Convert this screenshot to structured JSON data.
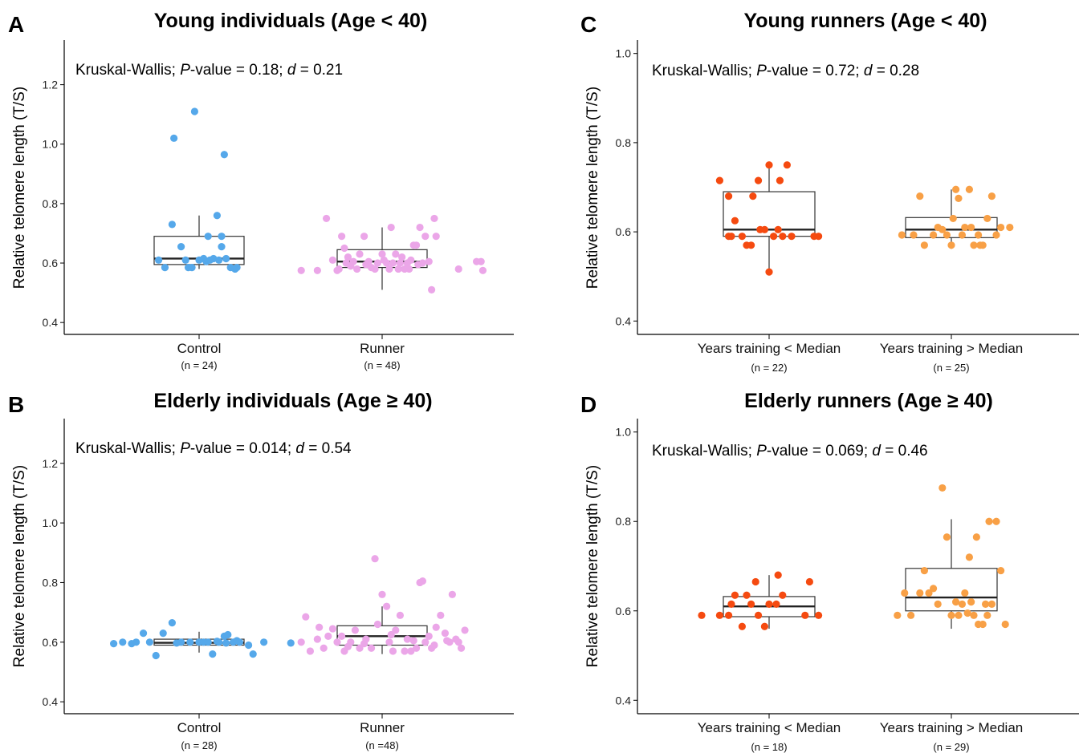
{
  "chart_data": [
    {
      "type": "box",
      "panel": "A",
      "title": "Young individuals (Age < 40)",
      "stat_parts": [
        "Kruskal-Wallis; ",
        "P",
        "-value = 0.18; ",
        "d",
        " = 0.21"
      ],
      "ylabel": "Relative telomere length (T/S)",
      "ylim": [
        0.36,
        1.35
      ],
      "yticks": [
        "0.4",
        "0.6",
        "0.8",
        "1.0",
        "1.2"
      ],
      "categories": [
        "Control",
        "Runner"
      ],
      "n_labels": [
        "(n = 24)",
        "(n = 48)"
      ],
      "colors": [
        "#55a8ea",
        "#eba6e8"
      ],
      "boxes": [
        {
          "q1": 0.595,
          "median": 0.615,
          "q3": 0.69,
          "whisker_low": 0.58,
          "whisker_high": 0.76
        },
        {
          "q1": 0.585,
          "median": 0.605,
          "q3": 0.645,
          "whisker_low": 0.51,
          "whisker_high": 0.72
        }
      ],
      "points": [
        [
          [
            -0.45,
            0.61
          ],
          [
            -0.38,
            0.585
          ],
          [
            -0.3,
            0.73
          ],
          [
            -0.2,
            0.655
          ],
          [
            -0.28,
            1.02
          ],
          [
            -0.05,
            1.11
          ],
          [
            0.1,
            0.69
          ],
          [
            0.2,
            0.76
          ],
          [
            0.25,
            0.69
          ],
          [
            0.28,
            0.965
          ],
          [
            0.25,
            0.655
          ],
          [
            -0.15,
            0.61
          ],
          [
            -0.12,
            0.585
          ],
          [
            -0.08,
            0.585
          ],
          [
            0.0,
            0.61
          ],
          [
            0.05,
            0.615
          ],
          [
            0.08,
            0.605
          ],
          [
            0.12,
            0.61
          ],
          [
            0.16,
            0.615
          ],
          [
            0.22,
            0.61
          ],
          [
            0.3,
            0.615
          ],
          [
            0.35,
            0.585
          ],
          [
            0.4,
            0.58
          ],
          [
            0.42,
            0.585
          ]
        ],
        [
          [
            -0.9,
            0.575
          ],
          [
            -0.72,
            0.575
          ],
          [
            -0.62,
            0.75
          ],
          [
            -0.5,
            0.575
          ],
          [
            -0.45,
            0.69
          ],
          [
            -0.42,
            0.65
          ],
          [
            -0.38,
            0.62
          ],
          [
            -0.32,
            0.605
          ],
          [
            -0.28,
            0.58
          ],
          [
            -0.25,
            0.63
          ],
          [
            -0.2,
            0.69
          ],
          [
            -0.15,
            0.605
          ],
          [
            -0.12,
            0.585
          ],
          [
            -0.08,
            0.58
          ],
          [
            -0.05,
            0.6
          ],
          [
            0.0,
            0.63
          ],
          [
            0.02,
            0.61
          ],
          [
            0.05,
            0.6
          ],
          [
            0.08,
            0.58
          ],
          [
            0.1,
            0.72
          ],
          [
            0.12,
            0.6
          ],
          [
            0.15,
            0.63
          ],
          [
            0.18,
            0.58
          ],
          [
            0.2,
            0.6
          ],
          [
            0.22,
            0.62
          ],
          [
            0.25,
            0.58
          ],
          [
            0.28,
            0.6
          ],
          [
            0.3,
            0.58
          ],
          [
            0.35,
            0.66
          ],
          [
            0.38,
            0.66
          ],
          [
            0.42,
            0.72
          ],
          [
            0.48,
            0.69
          ],
          [
            0.52,
            0.605
          ],
          [
            0.55,
            0.51
          ],
          [
            0.58,
            0.75
          ],
          [
            0.6,
            0.69
          ],
          [
            -0.55,
            0.61
          ],
          [
            -0.48,
            0.58
          ],
          [
            -0.4,
            0.6
          ],
          [
            -0.35,
            0.59
          ],
          [
            -0.18,
            0.595
          ],
          [
            0.32,
            0.61
          ],
          [
            0.4,
            0.595
          ],
          [
            0.45,
            0.6
          ],
          [
            0.85,
            0.58
          ],
          [
            1.05,
            0.605
          ],
          [
            1.12,
            0.575
          ],
          [
            1.1,
            0.605
          ]
        ]
      ]
    },
    {
      "type": "box",
      "panel": "B",
      "title": "Elderly individuals (Age ≥ 40)",
      "stat_parts": [
        "Kruskal-Wallis; ",
        "P",
        "-value = 0.014; ",
        "d",
        " = 0.54"
      ],
      "ylabel": "Relative telomere length (T/S)",
      "ylim": [
        0.36,
        1.35
      ],
      "yticks": [
        "0.4",
        "0.6",
        "0.8",
        "1.0",
        "1.2"
      ],
      "categories": [
        "Control",
        "Runner"
      ],
      "n_labels": [
        "(n = 28)",
        "(n =48)"
      ],
      "colors": [
        "#55a8ea",
        "#eba6e8"
      ],
      "boxes": [
        {
          "q1": 0.59,
          "median": 0.598,
          "q3": 0.61,
          "whisker_low": 0.565,
          "whisker_high": 0.635
        },
        {
          "q1": 0.59,
          "median": 0.62,
          "q3": 0.655,
          "whisker_low": 0.56,
          "whisker_high": 0.72
        }
      ],
      "points": [
        [
          [
            -0.95,
            0.595
          ],
          [
            -0.85,
            0.6
          ],
          [
            -0.75,
            0.595
          ],
          [
            -0.7,
            0.6
          ],
          [
            -0.62,
            0.63
          ],
          [
            -0.55,
            0.6
          ],
          [
            -0.48,
            0.555
          ],
          [
            -0.4,
            0.63
          ],
          [
            -0.3,
            0.665
          ],
          [
            -0.2,
            0.6
          ],
          [
            -0.1,
            0.6
          ],
          [
            0.0,
            0.6
          ],
          [
            0.1,
            0.6
          ],
          [
            0.15,
            0.56
          ],
          [
            0.22,
            0.6
          ],
          [
            0.28,
            0.62
          ],
          [
            0.32,
            0.625
          ],
          [
            0.38,
            0.6
          ],
          [
            0.45,
            0.6
          ],
          [
            0.55,
            0.59
          ],
          [
            0.6,
            0.56
          ],
          [
            0.72,
            0.6
          ],
          [
            1.02,
            0.597
          ],
          [
            -0.25,
            0.597
          ],
          [
            0.05,
            0.6
          ],
          [
            0.2,
            0.603
          ],
          [
            0.3,
            0.597
          ],
          [
            0.42,
            0.605
          ]
        ],
        [
          [
            -0.9,
            0.6
          ],
          [
            -0.85,
            0.685
          ],
          [
            -0.8,
            0.57
          ],
          [
            -0.72,
            0.61
          ],
          [
            -0.65,
            0.58
          ],
          [
            -0.6,
            0.62
          ],
          [
            -0.55,
            0.645
          ],
          [
            -0.5,
            0.6
          ],
          [
            -0.42,
            0.57
          ],
          [
            -0.35,
            0.6
          ],
          [
            -0.3,
            0.64
          ],
          [
            -0.25,
            0.58
          ],
          [
            -0.18,
            0.61
          ],
          [
            -0.12,
            0.58
          ],
          [
            -0.08,
            0.88
          ],
          [
            -0.05,
            0.66
          ],
          [
            0.0,
            0.76
          ],
          [
            0.05,
            0.72
          ],
          [
            0.08,
            0.6
          ],
          [
            0.12,
            0.57
          ],
          [
            0.15,
            0.64
          ],
          [
            0.2,
            0.69
          ],
          [
            0.25,
            0.57
          ],
          [
            0.28,
            0.61
          ],
          [
            0.32,
            0.57
          ],
          [
            0.38,
            0.58
          ],
          [
            0.42,
            0.8
          ],
          [
            0.45,
            0.805
          ],
          [
            0.48,
            0.6
          ],
          [
            0.52,
            0.62
          ],
          [
            0.55,
            0.58
          ],
          [
            0.6,
            0.65
          ],
          [
            0.65,
            0.69
          ],
          [
            0.7,
            0.63
          ],
          [
            0.75,
            0.6
          ],
          [
            0.78,
            0.76
          ],
          [
            0.82,
            0.61
          ],
          [
            0.88,
            0.58
          ],
          [
            0.92,
            0.64
          ],
          [
            -0.7,
            0.65
          ],
          [
            -0.45,
            0.62
          ],
          [
            -0.2,
            0.595
          ],
          [
            0.1,
            0.625
          ],
          [
            0.35,
            0.605
          ],
          [
            0.58,
            0.59
          ],
          [
            0.72,
            0.605
          ],
          [
            0.85,
            0.6
          ],
          [
            -0.38,
            0.585
          ]
        ]
      ]
    },
    {
      "type": "box",
      "panel": "C",
      "title": "Young runners (Age < 40)",
      "stat_parts": [
        "Kruskal-Wallis; ",
        "P",
        "-value = 0.72; ",
        "d",
        " = 0.28"
      ],
      "ylabel": "Relative telomere length (T/S)",
      "ylim": [
        0.37,
        1.03
      ],
      "yticks": [
        "0.4",
        "0.6",
        "0.8",
        "1.0"
      ],
      "categories": [
        "Years training < Median",
        "Years training > Median"
      ],
      "n_labels": [
        "(n = 22)",
        "(n = 25)"
      ],
      "colors": [
        "#f54a10",
        "#f8a046"
      ],
      "boxes": [
        {
          "q1": 0.59,
          "median": 0.605,
          "q3": 0.69,
          "whisker_low": 0.51,
          "whisker_high": 0.75
        },
        {
          "q1": 0.587,
          "median": 0.605,
          "q3": 0.632,
          "whisker_low": 0.562,
          "whisker_high": 0.695
        }
      ],
      "points": [
        [
          [
            -0.55,
            0.715
          ],
          [
            -0.45,
            0.68
          ],
          [
            -0.45,
            0.59
          ],
          [
            -0.42,
            0.59
          ],
          [
            -0.38,
            0.625
          ],
          [
            -0.3,
            0.59
          ],
          [
            -0.25,
            0.57
          ],
          [
            -0.2,
            0.57
          ],
          [
            -0.18,
            0.68
          ],
          [
            -0.12,
            0.715
          ],
          [
            -0.1,
            0.605
          ],
          [
            -0.05,
            0.605
          ],
          [
            0.0,
            0.75
          ],
          [
            0.0,
            0.51
          ],
          [
            0.05,
            0.59
          ],
          [
            0.1,
            0.605
          ],
          [
            0.12,
            0.715
          ],
          [
            0.15,
            0.59
          ],
          [
            0.2,
            0.75
          ],
          [
            0.25,
            0.59
          ],
          [
            0.5,
            0.59
          ],
          [
            0.55,
            0.59
          ]
        ],
        [
          [
            -0.55,
            0.593
          ],
          [
            -0.42,
            0.593
          ],
          [
            -0.35,
            0.68
          ],
          [
            -0.3,
            0.57
          ],
          [
            -0.2,
            0.593
          ],
          [
            -0.15,
            0.61
          ],
          [
            -0.1,
            0.605
          ],
          [
            -0.05,
            0.593
          ],
          [
            0.0,
            0.57
          ],
          [
            0.02,
            0.63
          ],
          [
            0.05,
            0.695
          ],
          [
            0.08,
            0.675
          ],
          [
            0.12,
            0.593
          ],
          [
            0.15,
            0.61
          ],
          [
            0.2,
            0.695
          ],
          [
            0.22,
            0.61
          ],
          [
            0.25,
            0.57
          ],
          [
            0.3,
            0.593
          ],
          [
            0.32,
            0.57
          ],
          [
            0.35,
            0.57
          ],
          [
            0.4,
            0.63
          ],
          [
            0.45,
            0.68
          ],
          [
            0.5,
            0.593
          ],
          [
            0.55,
            0.61
          ],
          [
            0.65,
            0.61
          ]
        ]
      ]
    },
    {
      "type": "box",
      "panel": "D",
      "title": "Elderly runners (Age ≥ 40)",
      "stat_parts": [
        "Kruskal-Wallis; ",
        "P",
        "-value = 0.069; ",
        "d",
        " = 0.46"
      ],
      "ylabel": "Relative telomere length (T/S)",
      "ylim": [
        0.37,
        1.03
      ],
      "yticks": [
        "0.4",
        "0.6",
        "0.8",
        "1.0"
      ],
      "categories": [
        "Years training < Median",
        "Years training > Median"
      ],
      "n_labels": [
        "(n = 18)",
        "(n = 29)"
      ],
      "colors": [
        "#f54a10",
        "#f8a046"
      ],
      "boxes": [
        {
          "q1": 0.587,
          "median": 0.61,
          "q3": 0.632,
          "whisker_low": 0.56,
          "whisker_high": 0.68
        },
        {
          "q1": 0.6,
          "median": 0.63,
          "q3": 0.695,
          "whisker_low": 0.56,
          "whisker_high": 0.805
        }
      ],
      "points": [
        [
          [
            -0.75,
            0.59
          ],
          [
            -0.55,
            0.59
          ],
          [
            -0.45,
            0.59
          ],
          [
            -0.42,
            0.615
          ],
          [
            -0.38,
            0.635
          ],
          [
            -0.3,
            0.565
          ],
          [
            -0.25,
            0.635
          ],
          [
            -0.2,
            0.615
          ],
          [
            -0.15,
            0.665
          ],
          [
            -0.12,
            0.59
          ],
          [
            -0.05,
            0.565
          ],
          [
            0.0,
            0.615
          ],
          [
            0.08,
            0.615
          ],
          [
            0.1,
            0.68
          ],
          [
            0.15,
            0.635
          ],
          [
            0.4,
            0.59
          ],
          [
            0.45,
            0.665
          ],
          [
            0.55,
            0.59
          ]
        ],
        [
          [
            -0.6,
            0.59
          ],
          [
            -0.52,
            0.64
          ],
          [
            -0.45,
            0.59
          ],
          [
            -0.3,
            0.69
          ],
          [
            -0.25,
            0.64
          ],
          [
            -0.2,
            0.65
          ],
          [
            -0.15,
            0.615
          ],
          [
            -0.1,
            0.875
          ],
          [
            -0.05,
            0.765
          ],
          [
            0.0,
            0.59
          ],
          [
            0.05,
            0.62
          ],
          [
            0.08,
            0.59
          ],
          [
            0.12,
            0.615
          ],
          [
            0.15,
            0.64
          ],
          [
            0.2,
            0.72
          ],
          [
            0.22,
            0.62
          ],
          [
            0.25,
            0.59
          ],
          [
            0.28,
            0.765
          ],
          [
            0.3,
            0.57
          ],
          [
            0.35,
            0.57
          ],
          [
            0.4,
            0.59
          ],
          [
            0.42,
            0.8
          ],
          [
            0.45,
            0.615
          ],
          [
            0.5,
            0.8
          ],
          [
            0.55,
            0.69
          ],
          [
            0.6,
            0.57
          ],
          [
            -0.35,
            0.64
          ],
          [
            0.18,
            0.595
          ],
          [
            0.38,
            0.615
          ]
        ]
      ]
    }
  ]
}
